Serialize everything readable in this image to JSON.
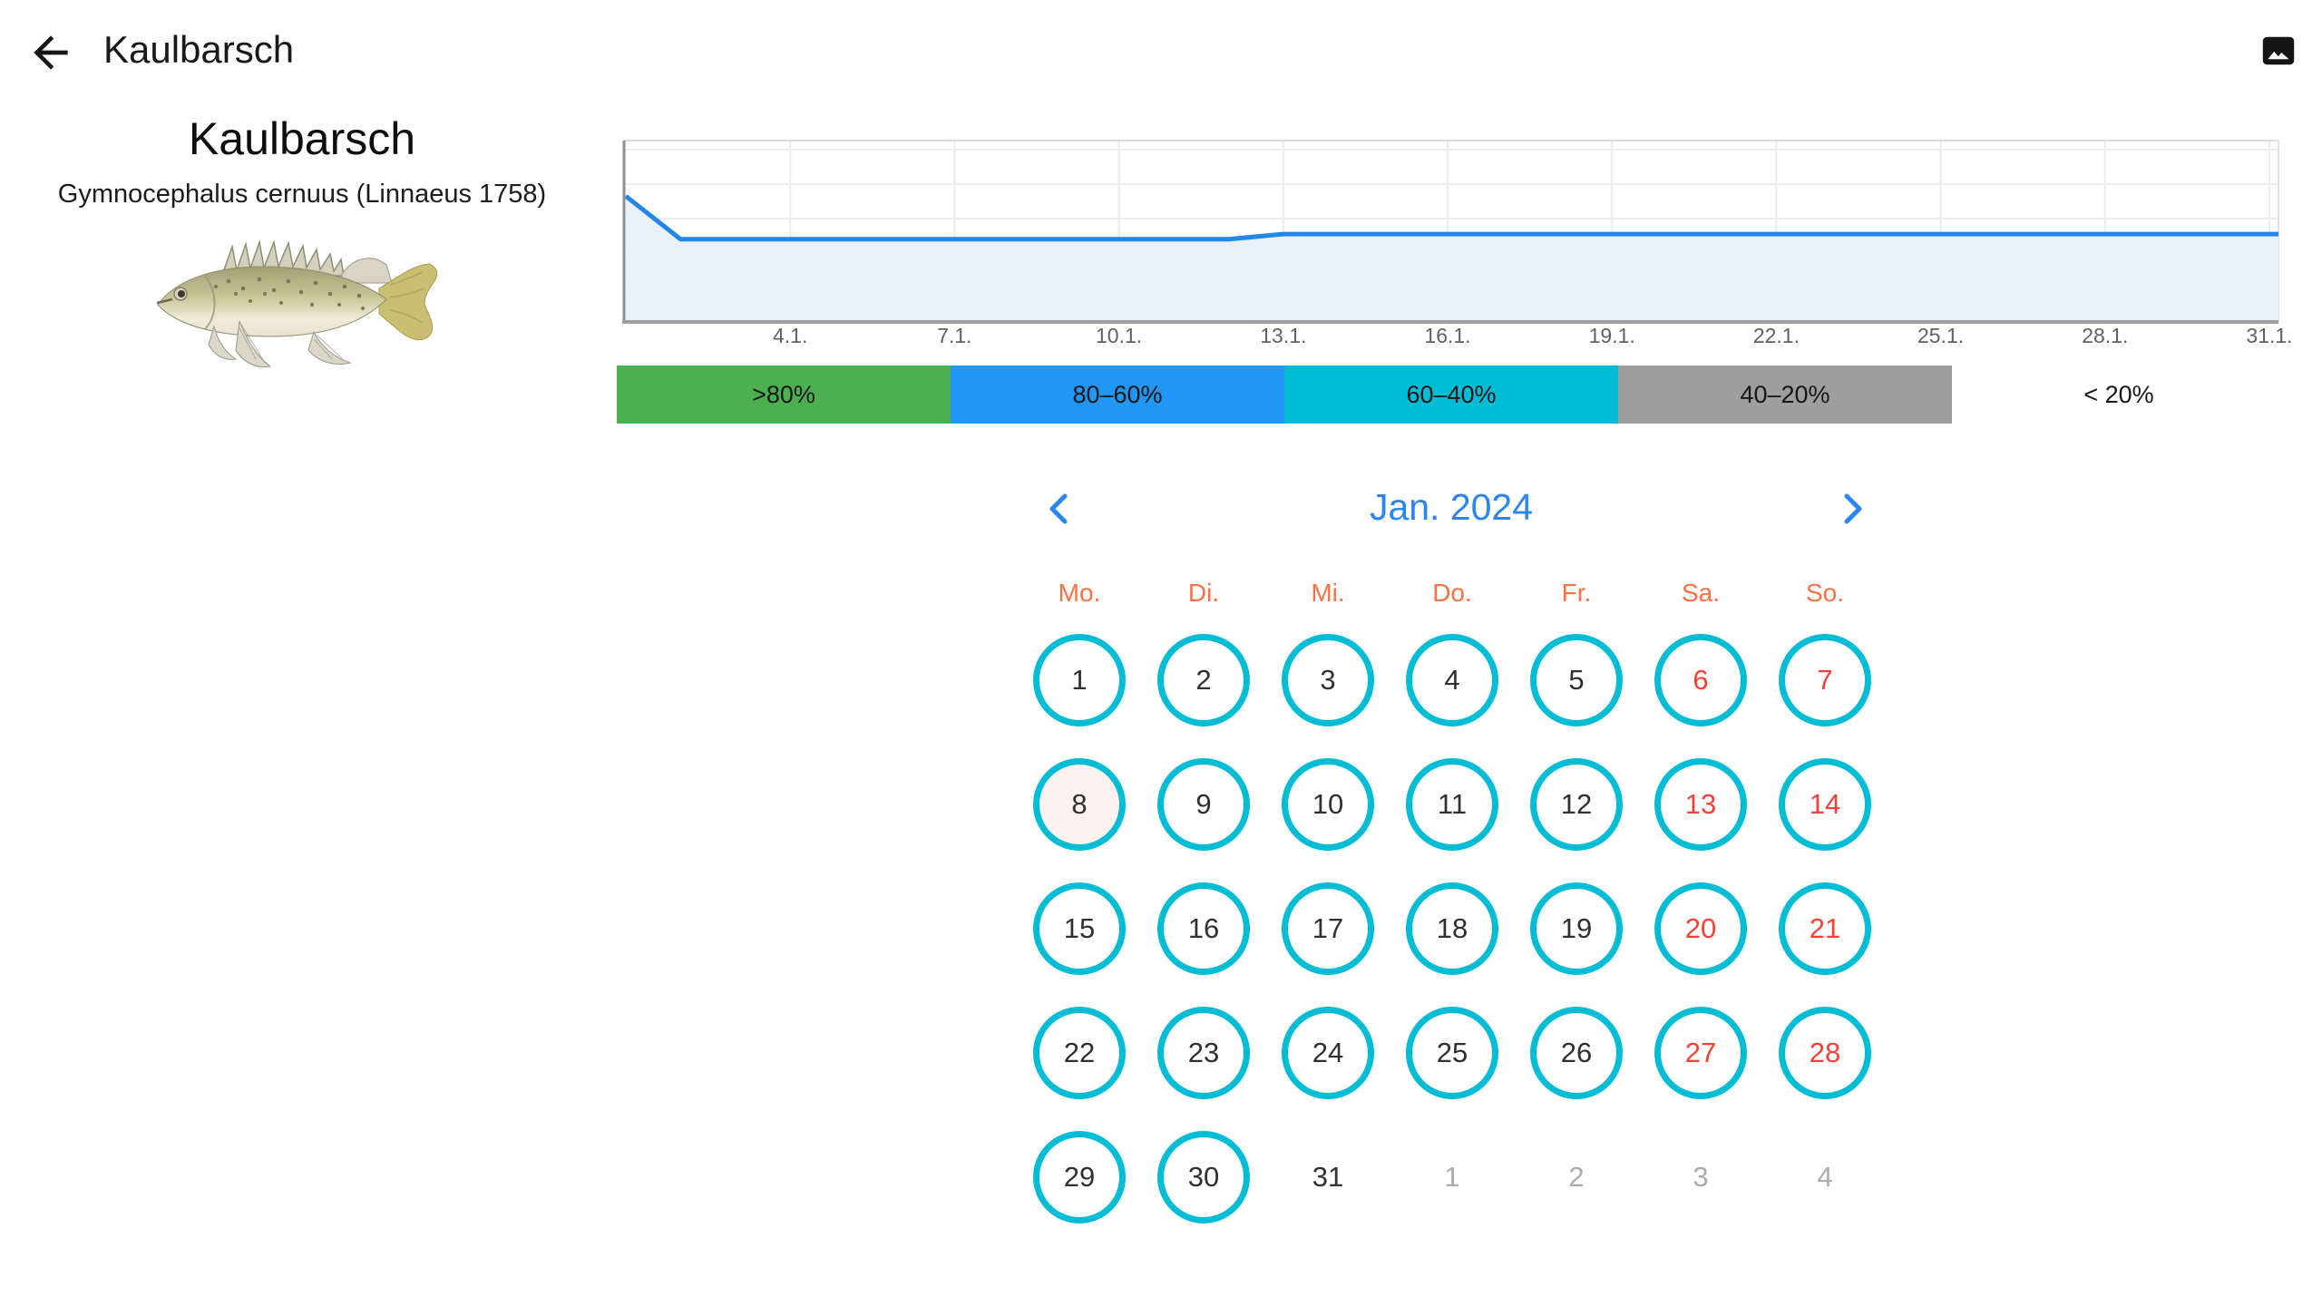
{
  "app_bar": {
    "title": "Kaulbarsch",
    "back_icon": "arrow-back-icon",
    "right_icon": "image-icon"
  },
  "species": {
    "common_name": "Kaulbarsch",
    "scientific_name": "Gymnocephalus cernuus (Linnaeus 1758)",
    "illustration": "ruffe-fish-illustration"
  },
  "chart_data": {
    "type": "area",
    "title": "Catch probability over January",
    "x": [
      1,
      2,
      3,
      4,
      5,
      6,
      7,
      8,
      9,
      10,
      11,
      12,
      13,
      14,
      15,
      16,
      17,
      18,
      19,
      20,
      21,
      22,
      23,
      24,
      25,
      26,
      27,
      28,
      29,
      30,
      31
    ],
    "values": [
      0.73,
      0.48,
      0.48,
      0.48,
      0.48,
      0.48,
      0.48,
      0.48,
      0.48,
      0.48,
      0.48,
      0.48,
      0.51,
      0.51,
      0.51,
      0.51,
      0.51,
      0.51,
      0.51,
      0.51,
      0.51,
      0.51,
      0.51,
      0.51,
      0.51,
      0.51,
      0.51,
      0.51,
      0.51,
      0.51,
      0.51
    ],
    "x_tick_days": [
      4,
      7,
      10,
      13,
      16,
      19,
      22,
      25,
      28,
      31
    ],
    "x_tick_labels": [
      "4.1.",
      "7.1.",
      "10.1.",
      "13.1.",
      "16.1.",
      "19.1.",
      "22.1.",
      "25.1.",
      "28.1.",
      "31.1."
    ],
    "xlabel": "",
    "ylabel": "",
    "ylim": [
      0,
      1
    ],
    "y_grid_step": 0.2,
    "grid": true,
    "legend_position": "none"
  },
  "probability_legend": {
    "segments": [
      {
        "label": ">80%",
        "color": "#4caf50",
        "text_color": "#161616"
      },
      {
        "label": "80–60%",
        "color": "#2196f3",
        "text_color": "#161616"
      },
      {
        "label": "60–40%",
        "color": "#00bcd4",
        "text_color": "#161616"
      },
      {
        "label": "40–20%",
        "color": "#9e9e9e",
        "text_color": "#161616"
      },
      {
        "label": "< 20%",
        "color": "#ffffff",
        "text_color": "#161616"
      }
    ]
  },
  "calendar": {
    "month_label": "Jan. 2024",
    "prev_icon": "chevron-left-icon",
    "next_icon": "chevron-right-icon",
    "weekday_labels": [
      "Mo.",
      "Di.",
      "Mi.",
      "Do.",
      "Fr.",
      "Sa.",
      "So."
    ],
    "weeks": [
      [
        {
          "day": 1
        },
        {
          "day": 2
        },
        {
          "day": 3
        },
        {
          "day": 4
        },
        {
          "day": 5
        },
        {
          "day": 6,
          "weekend": true
        },
        {
          "day": 7,
          "weekend": true
        }
      ],
      [
        {
          "day": 8,
          "today": true
        },
        {
          "day": 9
        },
        {
          "day": 10
        },
        {
          "day": 11
        },
        {
          "day": 12
        },
        {
          "day": 13,
          "weekend": true
        },
        {
          "day": 14,
          "weekend": true
        }
      ],
      [
        {
          "day": 15
        },
        {
          "day": 16
        },
        {
          "day": 17
        },
        {
          "day": 18
        },
        {
          "day": 19
        },
        {
          "day": 20,
          "weekend": true
        },
        {
          "day": 21,
          "weekend": true
        }
      ],
      [
        {
          "day": 22
        },
        {
          "day": 23
        },
        {
          "day": 24
        },
        {
          "day": 25
        },
        {
          "day": 26
        },
        {
          "day": 27,
          "weekend": true
        },
        {
          "day": 28,
          "weekend": true
        }
      ],
      [
        {
          "day": 29
        },
        {
          "day": 30
        },
        {
          "day": 31,
          "circled": false
        },
        {
          "day": 1,
          "muted": true
        },
        {
          "day": 2,
          "muted": true
        },
        {
          "day": 3,
          "muted": true
        },
        {
          "day": 4,
          "muted": true
        }
      ]
    ]
  },
  "colors": {
    "accent_blue": "#2b85f2",
    "teal": "#00bcd4",
    "weekend_red": "#f44336",
    "weekday_orange": "#ff7043",
    "today_bg": "#fdf3ee",
    "line_blue": "#2287e6",
    "area_fill": "#e9f1fb",
    "axis_gray": "#9e9e9e",
    "grid_gray": "#ececec",
    "tick_text": "#616161"
  }
}
